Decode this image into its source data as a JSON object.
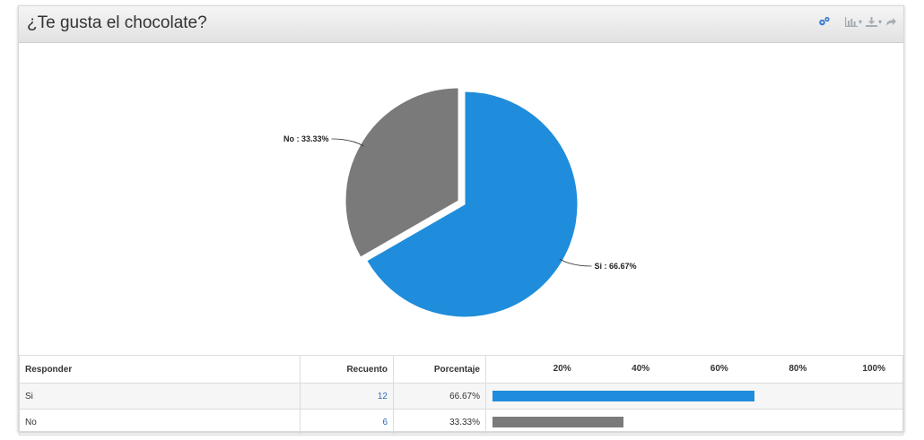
{
  "panel": {
    "title": "¿Te gusta el chocolate?",
    "tools": [
      {
        "icon": "gears-icon"
      },
      {
        "icon": "bar-chart-icon"
      },
      {
        "icon": "download-icon"
      },
      {
        "icon": "share-icon"
      }
    ]
  },
  "chart_data": {
    "type": "pie",
    "slices": [
      {
        "label": "Si",
        "value": 66.67,
        "color": "#1f8ddb",
        "text": "Si : 66.67%"
      },
      {
        "label": "No",
        "value": 33.33,
        "color": "#7a7a7a",
        "text": "No : 33.33%"
      }
    ]
  },
  "table": {
    "headers": {
      "responder": "Responder",
      "count": "Recuento",
      "percent": "Porcentaje"
    },
    "ticks": [
      "20%",
      "40%",
      "60%",
      "80%",
      "100%"
    ],
    "rows": [
      {
        "label": "Si",
        "count": "12",
        "percent": "66.67%",
        "fraction": 0.6667,
        "color": "#1f8ddb"
      },
      {
        "label": "No",
        "count": "6",
        "percent": "33.33%",
        "fraction": 0.3333,
        "color": "#7a7a7a"
      }
    ]
  }
}
